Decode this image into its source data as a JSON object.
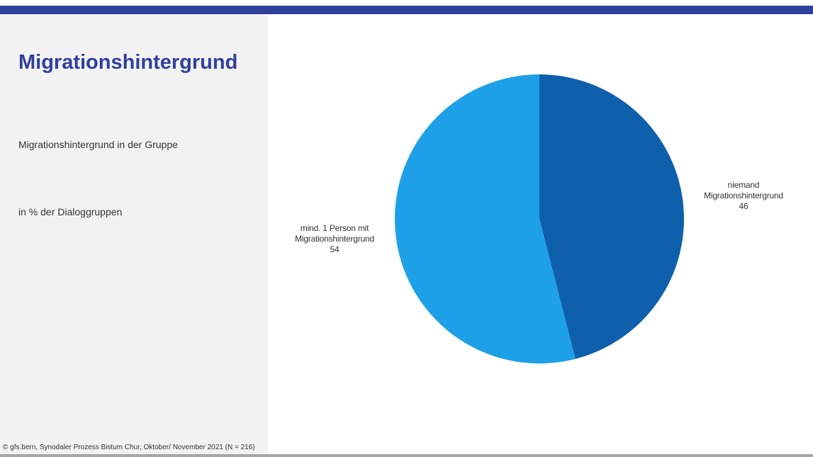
{
  "slide": {
    "title": "Migrationshintergrund",
    "subtitle": "Migrationshintergrund in der Gruppe",
    "unit_note": "in % der Dialoggruppen",
    "source": "©  gfs.bern, Synodaler Prozess Bistum Chur, Oktober/ November 2021 (N = 216)"
  },
  "colors": {
    "accent": "#303f9c",
    "panel": "#f2f2f2",
    "bottom_line": "#a6a6a6"
  },
  "chart_data": {
    "type": "pie",
    "title": "",
    "start_angle_deg": 0,
    "direction": "clockwise",
    "slices": [
      {
        "label_lines": [
          "niemand",
          "Migrationshintergrund"
        ],
        "value": 46,
        "value_label": "46",
        "color": "#0e60ad"
      },
      {
        "label_lines": [
          "mind. 1 Person mit",
          "Migrationshintergrund"
        ],
        "value": 54,
        "value_label": "54",
        "color": "#1ea0e8"
      }
    ]
  }
}
